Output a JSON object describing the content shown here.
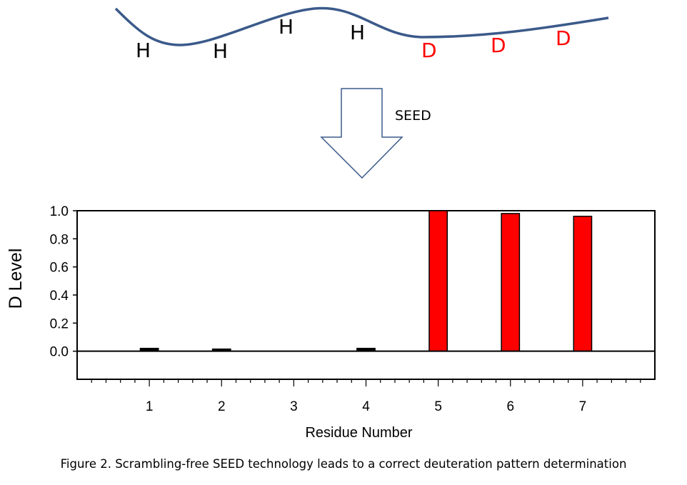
{
  "diagram": {
    "top_labels": [
      {
        "text": "H",
        "color": "#000000"
      },
      {
        "text": "H",
        "color": "#000000"
      },
      {
        "text": "H",
        "color": "#000000"
      },
      {
        "text": "H",
        "color": "#000000"
      },
      {
        "text": "D",
        "color": "#ff0000"
      },
      {
        "text": "D",
        "color": "#ff0000"
      },
      {
        "text": "D",
        "color": "#ff0000"
      }
    ],
    "curve_color": "#3b5a8a",
    "arrow_label": "SEED"
  },
  "chart_data": {
    "type": "bar",
    "title": "",
    "xlabel": "Residue Number",
    "ylabel": "D Level",
    "categories": [
      "1",
      "2",
      "3",
      "4",
      "5",
      "6",
      "7"
    ],
    "x": [
      1,
      2,
      3,
      4,
      5,
      6,
      7
    ],
    "values": [
      0.01,
      0.005,
      0.0,
      0.01,
      1.0,
      0.98,
      0.96
    ],
    "bar_color": "#ff0000",
    "xlim": [
      0,
      8
    ],
    "ylim": [
      -0.2,
      1.0
    ],
    "yticks": [
      "0.0",
      "0.2",
      "0.4",
      "0.6",
      "0.8",
      "1.0"
    ],
    "grid": false
  },
  "caption": "Figure 2. Scrambling-free SEED technology leads to a correct deuteration pattern determination"
}
